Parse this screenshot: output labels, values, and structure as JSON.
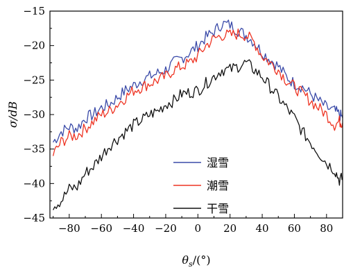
{
  "chart_data": {
    "type": "line",
    "xlabel": {
      "main": "θ",
      "sub": "s",
      "rest": "/(°)"
    },
    "ylabel": "σ/dB",
    "xlim": [
      -92,
      90
    ],
    "ylim": [
      -45,
      -15
    ],
    "xticks": [
      -80,
      -60,
      -40,
      -20,
      0,
      20,
      40,
      60,
      80
    ],
    "yticks": [
      -45,
      -40,
      -35,
      -30,
      -25,
      -20,
      -15
    ],
    "tick_labels_x": [
      "−80",
      "−60",
      "−40",
      "−20",
      "0",
      "20",
      "40",
      "60",
      "80"
    ],
    "tick_labels_y": [
      "−45",
      "−40",
      "−35",
      "−30",
      "−25",
      "−20",
      "−15"
    ],
    "legend_position": "lower-center",
    "series": [
      {
        "name": "湿雪",
        "color": "#3a4aa8",
        "x": [
          -90,
          -85,
          -80,
          -75,
          -70,
          -65,
          -60,
          -55,
          -50,
          -45,
          -40,
          -35,
          -30,
          -25,
          -20,
          -15,
          -10,
          -5,
          0,
          5,
          10,
          15,
          20,
          25,
          30,
          35,
          40,
          45,
          50,
          55,
          60,
          65,
          70,
          75,
          80,
          85,
          88,
          90
        ],
        "y": [
          -34.0,
          -32.5,
          -31.8,
          -32.0,
          -30.5,
          -30.0,
          -29.0,
          -28.5,
          -27.5,
          -26.5,
          -25.8,
          -25.0,
          -24.5,
          -24.0,
          -23.5,
          -22.5,
          -21.8,
          -21.0,
          -20.0,
          -18.8,
          -18.0,
          -16.8,
          -17.0,
          -17.8,
          -18.5,
          -19.5,
          -21.0,
          -22.0,
          -23.0,
          -24.5,
          -25.5,
          -26.0,
          -27.0,
          -28.0,
          -29.0,
          -29.5,
          -30.0,
          -30.5
        ]
      },
      {
        "name": "潮雪",
        "color": "#ee3322",
        "x": [
          -90,
          -85,
          -80,
          -75,
          -70,
          -65,
          -60,
          -55,
          -50,
          -45,
          -40,
          -35,
          -30,
          -25,
          -20,
          -15,
          -10,
          -5,
          0,
          5,
          10,
          15,
          20,
          25,
          30,
          35,
          40,
          45,
          50,
          55,
          60,
          65,
          70,
          75,
          80,
          85,
          88,
          90
        ],
        "y": [
          -35.8,
          -34.0,
          -33.2,
          -33.0,
          -32.0,
          -31.0,
          -30.0,
          -29.5,
          -28.5,
          -27.5,
          -26.5,
          -26.0,
          -25.5,
          -25.0,
          -24.5,
          -23.5,
          -23.0,
          -22.5,
          -21.5,
          -20.0,
          -19.0,
          -18.5,
          -18.5,
          -18.3,
          -18.5,
          -19.5,
          -21.5,
          -22.5,
          -23.5,
          -25.0,
          -26.0,
          -27.0,
          -28.0,
          -29.0,
          -30.0,
          -31.5,
          -31.0,
          -31.2
        ]
      },
      {
        "name": "干雪",
        "color": "#111111",
        "x": [
          -90,
          -85,
          -80,
          -75,
          -70,
          -65,
          -60,
          -55,
          -50,
          -45,
          -40,
          -35,
          -30,
          -25,
          -20,
          -15,
          -10,
          -5,
          0,
          5,
          10,
          15,
          20,
          25,
          30,
          35,
          40,
          45,
          50,
          55,
          60,
          65,
          70,
          75,
          80,
          85,
          88,
          90
        ],
        "y": [
          -43.2,
          -42.5,
          -40.8,
          -40.5,
          -38.5,
          -37.5,
          -36.0,
          -34.5,
          -33.5,
          -32.5,
          -31.5,
          -30.8,
          -30.0,
          -29.5,
          -28.5,
          -28.0,
          -27.0,
          -26.8,
          -26.5,
          -25.5,
          -24.5,
          -23.5,
          -23.5,
          -23.0,
          -22.5,
          -23.5,
          -24.5,
          -26.0,
          -27.5,
          -29.0,
          -30.5,
          -32.5,
          -34.0,
          -35.5,
          -37.0,
          -38.0,
          -39.5,
          -39.2
        ]
      }
    ]
  }
}
